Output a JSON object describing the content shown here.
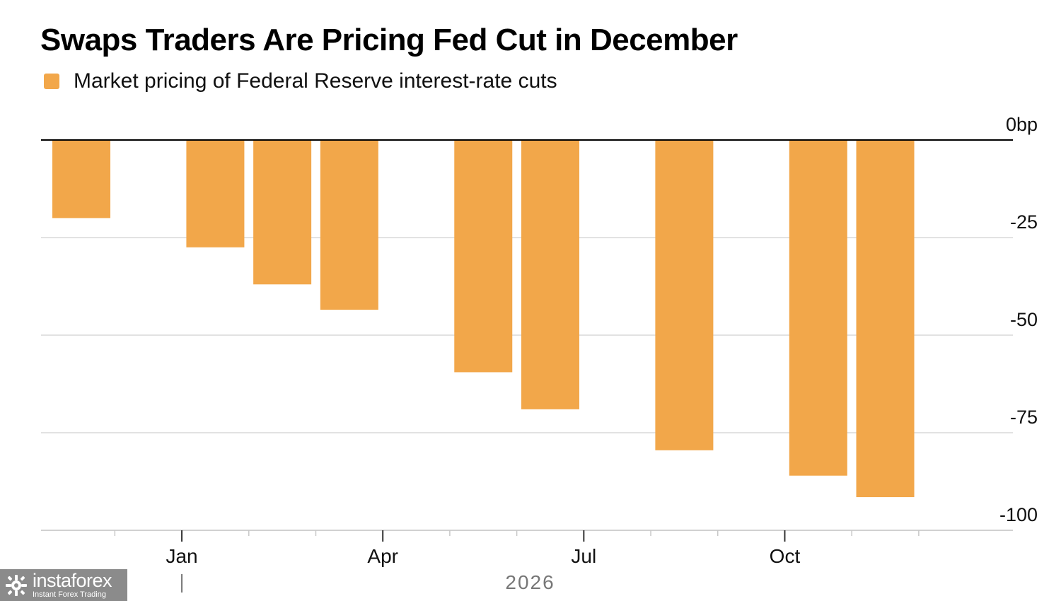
{
  "chart_data": {
    "type": "bar",
    "title": "Swaps Traders Are Pricing Fed Cut in December",
    "legend": "Market pricing of Federal Reserve interest-rate cuts",
    "color": "#F2A74A",
    "unit": "bp",
    "ylim": [
      -100,
      0
    ],
    "yticks": [
      0,
      -25,
      -50,
      -75,
      -100
    ],
    "ytick_labels": [
      "0bp",
      "-25",
      "-50",
      "-75",
      "-100"
    ],
    "x_domain": [
      0,
      13.8
    ],
    "bars": [
      {
        "x": 0,
        "value": -20
      },
      {
        "x": 2,
        "value": -27.5
      },
      {
        "x": 3,
        "value": -37
      },
      {
        "x": 4,
        "value": -43.5
      },
      {
        "x": 6,
        "value": -59.5
      },
      {
        "x": 7,
        "value": -69
      },
      {
        "x": 9,
        "value": -79.5
      },
      {
        "x": 11,
        "value": -86
      },
      {
        "x": 12,
        "value": -91.5
      }
    ],
    "minor_ticks": [
      0.5,
      1.5,
      2.5,
      3.5,
      4.5,
      5.5,
      6.5,
      7.5,
      8.5,
      9.5,
      10.5,
      11.5,
      12.5
    ],
    "month_labels": [
      {
        "x": 1.5,
        "label": "Jan"
      },
      {
        "x": 4.5,
        "label": "Apr"
      },
      {
        "x": 7.5,
        "label": "Jul"
      },
      {
        "x": 10.5,
        "label": "Oct"
      }
    ],
    "year_labels": [
      {
        "x": 6.7,
        "label": "2026"
      }
    ],
    "year_separator_x": 1.5
  },
  "watermark": {
    "brand": "instaforex",
    "tagline": "Instant Forex Trading"
  }
}
